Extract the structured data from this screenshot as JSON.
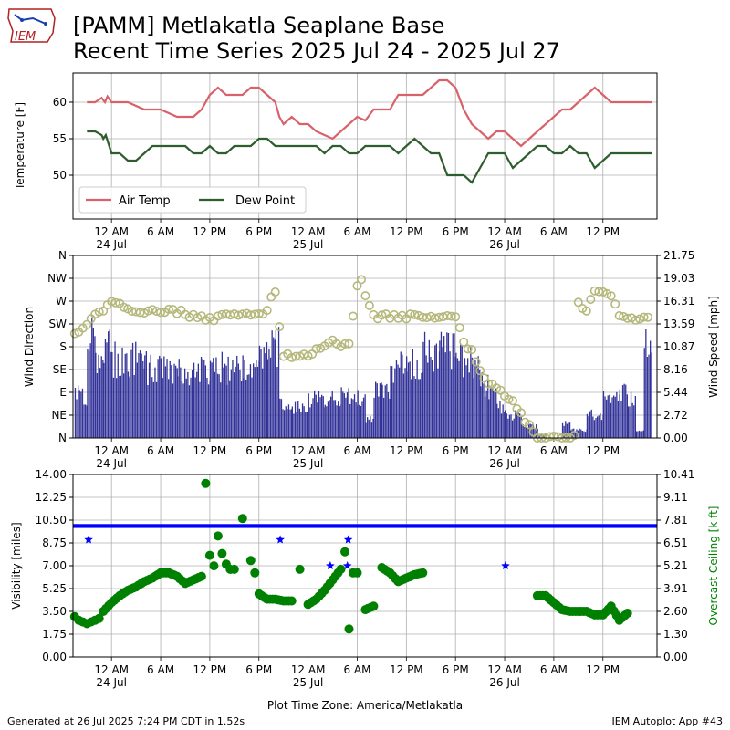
{
  "header": {
    "logo_text": "IEM",
    "title_line1": "[PAMM] Metlakatla Seaplane Base",
    "title_line2": "Recent Time Series 2025 Jul 24 - 2025 Jul 27"
  },
  "footer": {
    "generated": "Generated at 26 Jul 2025 7:24 PM CDT in 1.52s",
    "app": "IEM Autoplot App #43",
    "timezone_label": "Plot Time Zone: America/Metlakatla"
  },
  "colors": {
    "air_temp": "#d9626a",
    "dew_point": "#2e5e2e",
    "wind_bar": "#333399",
    "wind_dir": "#b5b87a",
    "visibility": "#0000ff",
    "ceiling": "#008000"
  },
  "x_axis": {
    "ticks": [
      {
        "h": 0,
        "label": "12 AM",
        "sub": "24 Jul"
      },
      {
        "h": 6,
        "label": "6 AM",
        "sub": ""
      },
      {
        "h": 12,
        "label": "12 PM",
        "sub": ""
      },
      {
        "h": 18,
        "label": "6 PM",
        "sub": ""
      },
      {
        "h": 24,
        "label": "12 AM",
        "sub": "25 Jul"
      },
      {
        "h": 30,
        "label": "6 AM",
        "sub": ""
      },
      {
        "h": 36,
        "label": "12 PM",
        "sub": ""
      },
      {
        "h": 42,
        "label": "6 PM",
        "sub": ""
      },
      {
        "h": 48,
        "label": "12 AM",
        "sub": "26 Jul"
      },
      {
        "h": 54,
        "label": "6 AM",
        "sub": ""
      },
      {
        "h": 60,
        "label": "12 PM",
        "sub": ""
      }
    ],
    "range_hours": [
      -4.7,
      66.6
    ]
  },
  "chart_data": [
    {
      "type": "line",
      "ylabel": "Temperature [F]",
      "ylim": [
        44,
        64
      ],
      "yticks": [
        50,
        55,
        60
      ],
      "grid": true,
      "legend_placement": "lower-left",
      "series": [
        {
          "name": "Air Temp",
          "x": [
            -3,
            -2,
            -1.2,
            -0.8,
            -0.5,
            0,
            2,
            4,
            6,
            8,
            9,
            10,
            11,
            12,
            13,
            14,
            15,
            16,
            17,
            18,
            19,
            20,
            20.5,
            21,
            22,
            23,
            24,
            25,
            26,
            27,
            28,
            29,
            30,
            31,
            32,
            33,
            34,
            35,
            36,
            37,
            38,
            39,
            40,
            41,
            42,
            43,
            44,
            45,
            46,
            47,
            48,
            49,
            50,
            51,
            52,
            53,
            54,
            55,
            55.5,
            56,
            57,
            58,
            59,
            60,
            61,
            62,
            63,
            64,
            65,
            66
          ],
          "y": [
            60,
            60,
            60.6,
            60,
            60.8,
            60,
            60,
            59,
            59,
            58,
            58,
            58,
            59,
            61,
            62,
            61,
            61,
            61,
            62,
            62,
            61,
            60,
            58,
            57,
            58,
            57,
            57,
            56,
            55.5,
            55,
            56,
            57,
            58,
            57.5,
            59,
            59,
            59,
            61,
            61,
            61,
            61,
            62,
            63,
            63,
            62,
            59,
            57,
            56,
            55,
            56,
            56,
            55,
            54,
            55,
            56,
            57,
            58,
            59,
            59,
            59,
            60,
            61,
            62,
            61,
            60,
            60,
            60,
            60,
            60,
            60
          ]
        },
        {
          "name": "Dew Point",
          "x": [
            -3,
            -2,
            -1.2,
            -1,
            -0.7,
            0,
            1,
            2,
            2.5,
            3,
            4,
            5,
            6,
            7,
            8,
            9,
            10,
            11,
            12,
            13,
            14,
            15,
            16,
            17,
            18,
            19,
            20,
            21,
            22,
            23,
            24,
            25,
            26,
            27,
            28,
            29,
            30,
            31,
            32,
            33,
            34,
            35,
            36,
            37,
            38,
            39,
            40,
            41,
            42,
            43,
            44,
            45,
            46,
            47,
            48,
            49,
            50,
            51,
            52,
            53,
            54,
            55,
            56,
            57,
            58,
            59,
            60,
            61,
            62,
            63,
            64,
            65,
            66
          ],
          "y": [
            56,
            56,
            55.5,
            55,
            55.5,
            53,
            53,
            52,
            52,
            52,
            53,
            54,
            54,
            54,
            54,
            54,
            53,
            53,
            54,
            53,
            53,
            54,
            54,
            54,
            55,
            55,
            54,
            54,
            54,
            54,
            54,
            54,
            53,
            54,
            54,
            53,
            53,
            54,
            54,
            54,
            54,
            53,
            54,
            55,
            54,
            53,
            53,
            50,
            50,
            50,
            49,
            51,
            53,
            53,
            53,
            51,
            52,
            53,
            54,
            54,
            53,
            53,
            54,
            53,
            53,
            51,
            52,
            53,
            53,
            53,
            53,
            53,
            53
          ]
        }
      ]
    },
    {
      "type": "bar",
      "ylabel": "Wind Direction",
      "y2label": "Wind Speed [mph]",
      "dir_ticks": [
        "N",
        "NE",
        "E",
        "SE",
        "S",
        "SW",
        "W",
        "NW",
        "N"
      ],
      "speed_ticks": [
        "0.00",
        "2.72",
        "5.44",
        "8.16",
        "10.87",
        "13.59",
        "16.31",
        "19.03",
        "21.75"
      ],
      "speed_lim": [
        0,
        21.75
      ],
      "grid": true,
      "speed_series": {
        "name": "Wind Speed",
        "x": [
          -4.5,
          -3,
          -2,
          -1,
          0,
          2,
          4,
          6,
          8,
          10,
          12,
          14,
          16,
          18,
          19,
          20,
          20.5,
          22,
          24,
          26,
          28,
          30,
          31,
          32,
          33,
          34,
          36,
          38,
          40,
          42,
          44,
          45,
          46,
          47,
          48,
          50,
          52,
          53,
          54,
          55,
          56,
          58,
          60,
          62,
          63,
          64,
          65,
          66
        ],
        "y": [
          5.5,
          13,
          11,
          11.5,
          10,
          10,
          9,
          9,
          8.5,
          9,
          9,
          9,
          8.5,
          11,
          12,
          12,
          4.5,
          4,
          5,
          5,
          5.5,
          5,
          2.5,
          6,
          6.5,
          9,
          10,
          11,
          11,
          10,
          9,
          7,
          6,
          4,
          3,
          1.5,
          0.5,
          0,
          0,
          2,
          1,
          3,
          5,
          6,
          5,
          1,
          13,
          13
        ]
      },
      "direction_series": {
        "name": "Wind Direction",
        "x": [
          -4.5,
          -3,
          -2,
          -1,
          0,
          1,
          2,
          4,
          6,
          8,
          10,
          12,
          14,
          16,
          18,
          19,
          19.5,
          20,
          20.5,
          21,
          22,
          24,
          26,
          27,
          28,
          29,
          30,
          30.5,
          31,
          32,
          33,
          34,
          36,
          38,
          40,
          42,
          42.5,
          43,
          44,
          45,
          46,
          47,
          48,
          49,
          50,
          52,
          54,
          56,
          56.5,
          57,
          58,
          59,
          60,
          61,
          62,
          63,
          64,
          65,
          66
        ],
        "y": [
          210,
          220,
          245,
          250,
          270,
          270,
          255,
          250,
          250,
          250,
          240,
          235,
          240,
          245,
          245,
          250,
          275,
          290,
          220,
          165,
          160,
          165,
          180,
          190,
          180,
          185,
          300,
          310,
          280,
          240,
          240,
          240,
          240,
          240,
          240,
          240,
          215,
          190,
          170,
          130,
          110,
          100,
          80,
          70,
          45,
          0,
          0,
          0,
          5,
          270,
          250,
          290,
          285,
          280,
          240,
          235,
          235,
          235,
          235
        ]
      }
    },
    {
      "type": "scatter",
      "ylabel": "Visibility [miles]",
      "y2label": "Overcast Ceiling [k ft]",
      "vis_ticks": [
        "0.00",
        "1.75",
        "3.50",
        "5.25",
        "7.00",
        "8.75",
        "10.50",
        "12.25",
        "14.00"
      ],
      "ceil_ticks": [
        "0.00",
        "1.30",
        "2.60",
        "3.91",
        "5.21",
        "6.51",
        "7.81",
        "9.11",
        "10.41"
      ],
      "vis_lim": [
        0,
        14
      ],
      "ceil_lim": [
        0,
        10.41
      ],
      "grid": true,
      "visibility_band": {
        "from": -4.7,
        "to": 66.6,
        "y_low": 9.9,
        "y_high": 10.2
      },
      "visibility_points": {
        "x": [
          -2.8,
          20.6,
          26.7,
          28.8,
          28.9,
          48.1
        ],
        "y": [
          9.0,
          9.0,
          7.0,
          7.0,
          9.0,
          7.0
        ]
      },
      "ceiling_points": {
        "x": [
          -4.5,
          -4,
          -3.5,
          -3,
          -2.5,
          -2,
          -1.5,
          -1,
          0,
          1,
          2,
          3,
          4,
          5,
          6,
          7,
          8,
          9,
          10,
          11,
          11.5,
          12,
          12.5,
          13,
          13.5,
          14,
          14.5,
          15,
          16,
          17,
          17.5,
          18,
          19,
          20,
          21,
          22,
          23,
          24,
          25,
          26,
          27,
          28,
          28.5,
          29,
          29.5,
          30,
          31,
          32,
          33,
          34,
          35,
          36,
          37,
          38,
          52,
          53,
          54,
          55,
          56,
          57,
          58,
          59,
          60,
          61,
          62,
          63
        ],
        "y": [
          2.3,
          2.1,
          2.0,
          1.9,
          2.0,
          2.1,
          2.2,
          2.6,
          3.1,
          3.5,
          3.8,
          4.0,
          4.3,
          4.5,
          4.8,
          4.8,
          4.6,
          4.2,
          4.4,
          4.6,
          9.9,
          5.8,
          5.2,
          6.9,
          5.9,
          5.3,
          5.0,
          5.0,
          7.9,
          5.5,
          4.8,
          3.6,
          3.3,
          3.3,
          3.2,
          3.2,
          5.0,
          3.0,
          3.3,
          3.8,
          4.4,
          5.0,
          6.0,
          1.6,
          4.8,
          4.8,
          2.7,
          2.9,
          5.1,
          4.8,
          4.3,
          4.5,
          4.7,
          4.8,
          3.5,
          3.5,
          3.1,
          2.7,
          2.6,
          2.6,
          2.6,
          2.4,
          2.4,
          2.9,
          2.1,
          2.5
        ]
      }
    }
  ]
}
